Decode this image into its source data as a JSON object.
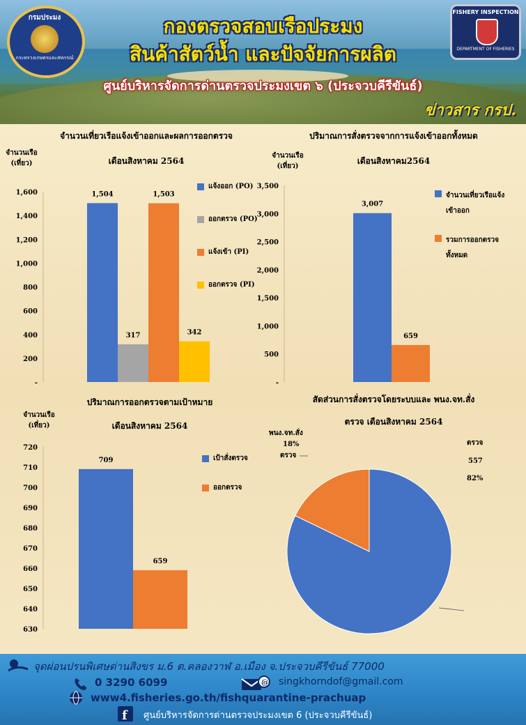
{
  "header": {
    "title_line1": "กองตรวจสอบเรือประมง",
    "title_line2": "สินค้าสัตว์น้ำ และปัจจัยการผลิต",
    "subtitle": "ศูนย์บริหารจัดการด่านตรวจประมงเขต ๖ (ประจวบคีรีขันธ์)",
    "tagline": "ข่าวสาร กรป.",
    "logo_left_text": "กรมประมง",
    "logo_left_sub": "กระทรวงเกษตรและสหกรณ์",
    "logo_right_top": "FISHERY INSPECTION",
    "logo_right_bottom": "DEPARTMENT OF FISHERIES",
    "colors": {
      "title": "#f6e000",
      "outline": "#1b2a66",
      "subtitle_glow": "#b31e1e"
    }
  },
  "chart_data": [
    {
      "type": "bar",
      "title_line1": "จำนวนเที่ยวเรือแจ้งเข้าออกและผลการออกตรวจ",
      "title_line2": "เดือนสิงหาคม 2564",
      "ylabel_line1": "จำนวนเรือ",
      "ylabel_line2": "(เที่ยว)",
      "ylim": [
        0,
        1600
      ],
      "yticks": [
        "-",
        "200",
        "400",
        "600",
        "800",
        "1,000",
        "1,200",
        "1,400",
        "1,600"
      ],
      "series": [
        {
          "name": "แจ้งออก (PO)",
          "value": 1504,
          "label": "1,504",
          "color": "#4472c4"
        },
        {
          "name": "ออกตรวจ (PO)",
          "value": 317,
          "label": "317",
          "color": "#a5a5a5"
        },
        {
          "name": "แจ้งเข้า (PI)",
          "value": 1503,
          "label": "1,503",
          "color": "#ed7d31"
        },
        {
          "name": "ออกตรวจ (PI)",
          "value": 342,
          "label": "342",
          "color": "#ffc000"
        }
      ],
      "legend_position": "right"
    },
    {
      "type": "bar",
      "title_line1": "ปริมาณการสั่งตรวจจากการแจ้งเข้าออกทั้งหมด",
      "title_line2": "เดือนสิงหาคม2564",
      "ylabel_line1": "จำนวนเรือ",
      "ylabel_line2": "(เที่ยว)",
      "ylim": [
        0,
        3500
      ],
      "yticks": [
        "-",
        "500",
        "1,000",
        "1,500",
        "2,000",
        "2,500",
        "3,000",
        "3,500"
      ],
      "series": [
        {
          "name": "จำนวนเที่ยวเรือแจ้งเข้าออก",
          "name_line1": "จำนวนเที่ยวเรือแจ้ง",
          "name_line2": "เข้าออก",
          "value": 3007,
          "label": "3,007",
          "color": "#4472c4"
        },
        {
          "name": "รวมการออกตรวจทั้งหมด",
          "name_line1": "รวมการออกตรวจ",
          "name_line2": "ทั้งหมด",
          "value": 659,
          "label": "659",
          "color": "#ed7d31"
        }
      ],
      "legend_position": "right"
    },
    {
      "type": "bar",
      "title_line1": "ปริมาณการออกตรวจตามเป้าหมาย",
      "title_line2": "เดือนสิงหาคม 2564",
      "ylabel_line1": "จำนวนเรือ",
      "ylabel_line2": "(เที่ยว)",
      "ylim": [
        630,
        720
      ],
      "yticks": [
        "630",
        "640",
        "650",
        "660",
        "670",
        "680",
        "690",
        "700",
        "710",
        "720"
      ],
      "series": [
        {
          "name": "เป้าสั่งตรวจ",
          "value": 709,
          "label": "709",
          "color": "#4472c4"
        },
        {
          "name": "ออกตรวจ",
          "value": 659,
          "label": "659",
          "color": "#ed7d31"
        }
      ],
      "legend_position": "right"
    },
    {
      "type": "pie",
      "title_line1": "สัดส่วนการสั่งตรวจโดยระบบและ พนง.จท.สั่ง",
      "title_line2": "ตรวจ เดือนสิงหาคม 2564",
      "slices": [
        {
          "name": "ระบบสั่งตรวจ",
          "name_line1": "ระบบสั่ง",
          "name_line2": "ตรวจ",
          "value": 557,
          "percent": "82%",
          "color": "#4472c4"
        },
        {
          "name": "พนง.จท.สั่งตรวจ",
          "name_line1": "พนง.จท.สั่ง",
          "name_line2": "ตรวจ",
          "value": 121,
          "percent": "18%",
          "color": "#ed7d31"
        }
      ]
    }
  ],
  "footer": {
    "address": "จุดผ่อนปรนพิเศษด่านสิงขร ม.6 ต.คลองวาฬ อ.เมือง จ.ประจวบคีรีขันธ์ 77000",
    "phone": "0 3290 6099",
    "email": "singkhorndof@gmail.com",
    "website": "www4.fisheries.go.th/fishquarantine-prachuap",
    "facebook": "ศูนย์บริหารจัดการด่านตรวจประมงเขต 6 (ประจวบคีรีขันธ์)"
  }
}
